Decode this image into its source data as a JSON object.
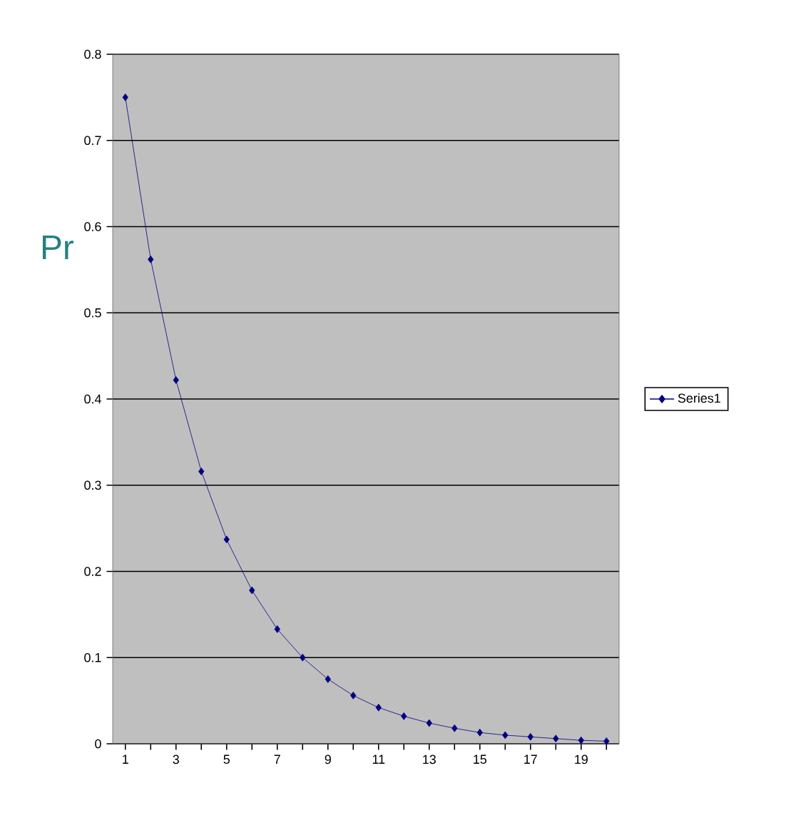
{
  "chart_data": {
    "type": "line",
    "ylabel": "Pr",
    "categories": [
      "1",
      null,
      "3",
      null,
      "5",
      null,
      "7",
      null,
      "9",
      null,
      "11",
      null,
      "13",
      null,
      "15",
      null,
      "17",
      null,
      "19",
      null
    ],
    "series": [
      {
        "name": "Series1",
        "color": "#000080",
        "values": [
          0.75,
          0.562,
          0.422,
          0.316,
          0.237,
          0.178,
          0.133,
          0.1,
          0.075,
          0.056,
          0.042,
          0.032,
          0.024,
          0.018,
          0.013,
          0.01,
          0.008,
          0.006,
          0.004,
          0.003
        ]
      }
    ],
    "ylim": [
      0,
      0.8
    ],
    "yticks": [
      0,
      0.1,
      0.2,
      0.3,
      0.4,
      0.5,
      0.6,
      0.7,
      0.8
    ],
    "grid": "y",
    "legend": "right",
    "marker": "diamond",
    "line_style": "solid"
  }
}
